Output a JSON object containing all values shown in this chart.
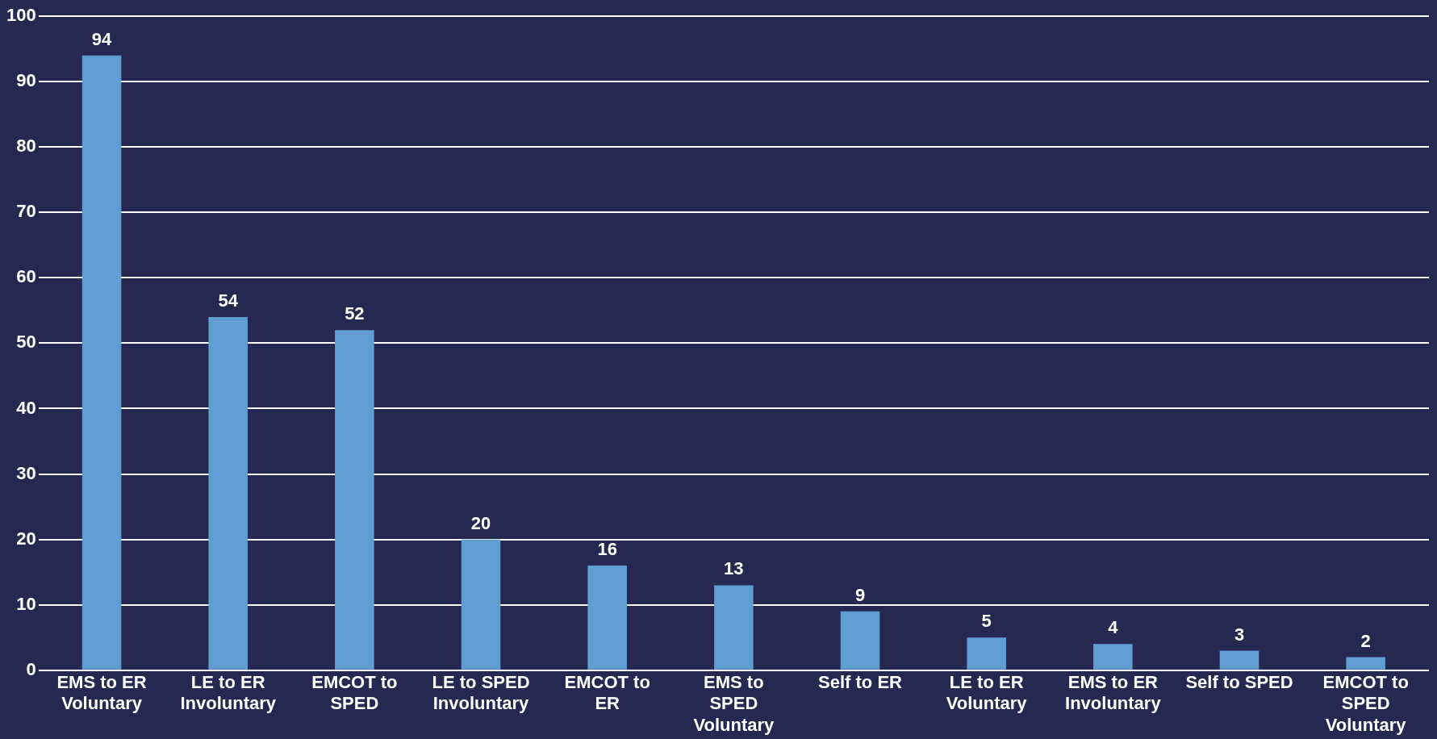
{
  "chart_data": {
    "type": "bar",
    "categories": [
      "EMS to ER Voluntary",
      "LE to ER Involuntary",
      "EMCOT to SPED",
      "LE to SPED Involuntary",
      "EMCOT to ER",
      "EMS to SPED Voluntary",
      "Self to ER",
      "LE to ER Voluntary",
      "EMS to ER Involuntary",
      "Self to SPED",
      "EMCOT to SPED Voluntary"
    ],
    "values": [
      94,
      54,
      52,
      20,
      16,
      13,
      9,
      5,
      4,
      3,
      2
    ],
    "color": "#5f9dd3",
    "ylim": [
      0,
      100
    ],
    "yticks": [
      0,
      10,
      20,
      30,
      40,
      50,
      60,
      70,
      80,
      90,
      100
    ],
    "grid": "y",
    "data_labels": true,
    "legend": false
  }
}
